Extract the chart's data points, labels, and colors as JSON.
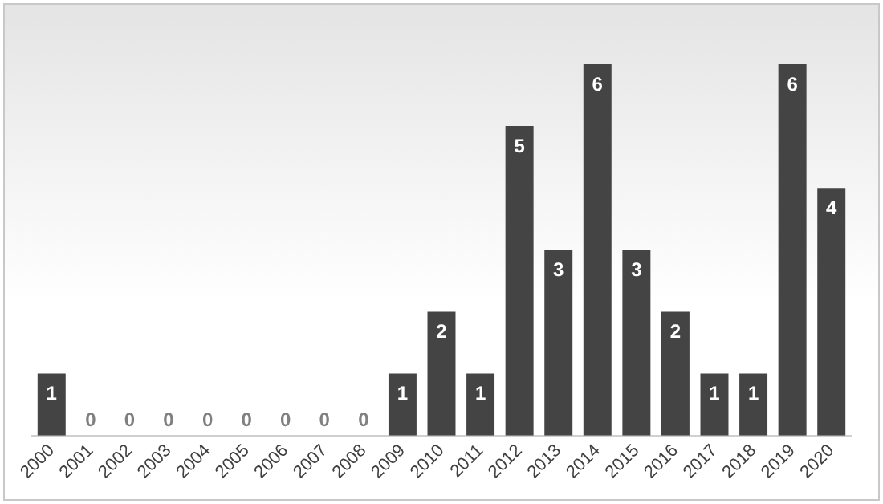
{
  "chart_data": {
    "type": "bar",
    "categories": [
      "2000",
      "2001",
      "2002",
      "2003",
      "2004",
      "2005",
      "2006",
      "2007",
      "2008",
      "2009",
      "2010",
      "2011",
      "2012",
      "2013",
      "2014",
      "2015",
      "2016",
      "2017",
      "2018",
      "2019",
      "2020"
    ],
    "values": [
      1,
      0,
      0,
      0,
      0,
      0,
      0,
      0,
      0,
      1,
      2,
      1,
      5,
      3,
      6,
      3,
      2,
      1,
      1,
      6,
      4
    ],
    "color": "#444444",
    "data_labels": true,
    "grid": false,
    "legend": false
  }
}
